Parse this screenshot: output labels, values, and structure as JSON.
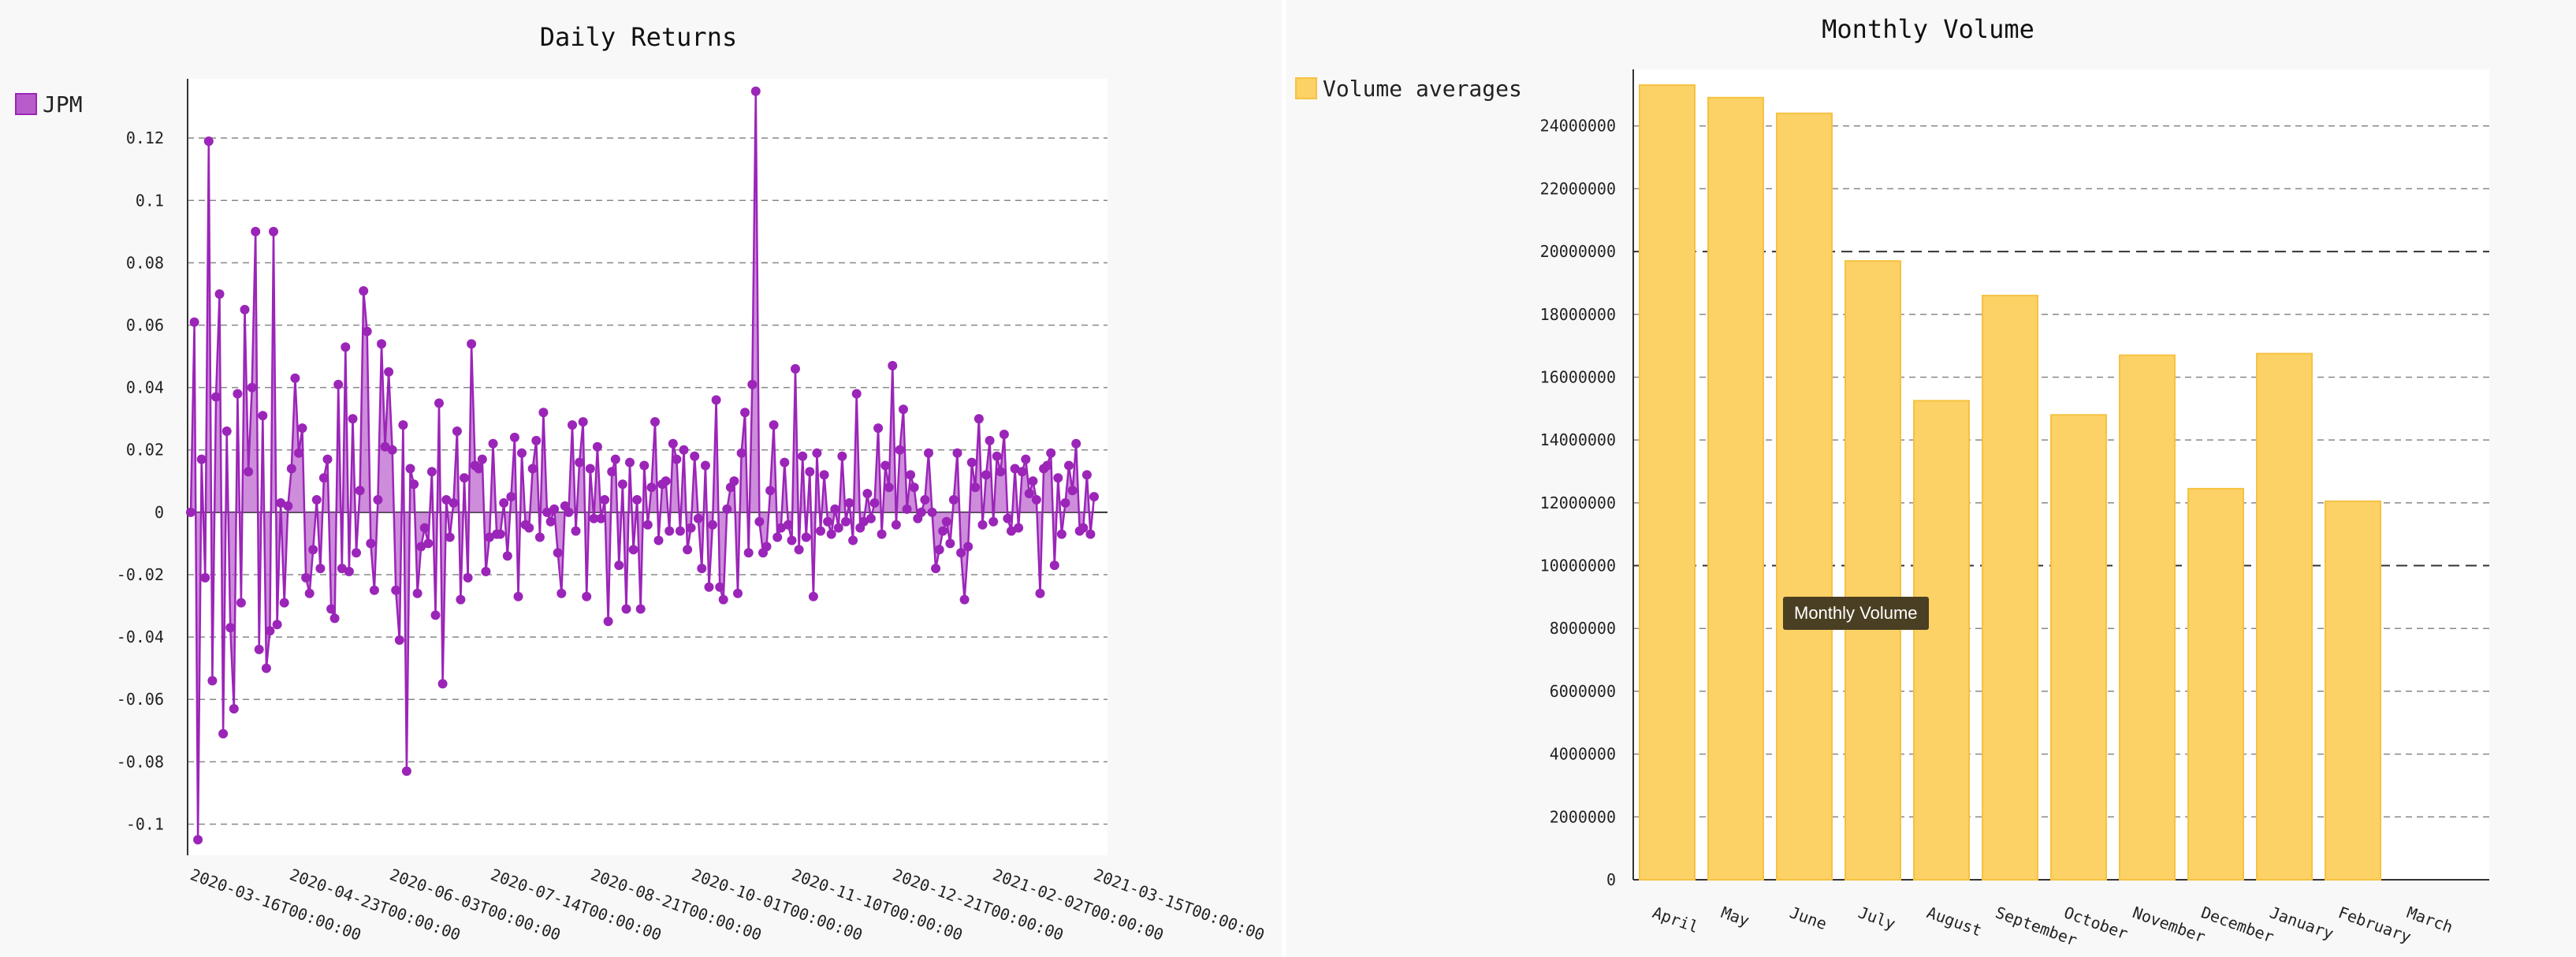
{
  "colors": {
    "line": "#9b25b8",
    "line_fill": "#b85ccc",
    "bar": "#fcd166",
    "bar_stroke": "#f5c242",
    "grid": "#888888"
  },
  "chart_data": [
    {
      "type": "line",
      "title": "Daily Returns",
      "series": [
        {
          "name": "JPM",
          "values": [
            0.0,
            0.061,
            -0.105,
            0.017,
            -0.021,
            0.119,
            -0.054,
            0.037,
            0.07,
            -0.071,
            0.026,
            -0.037,
            -0.063,
            0.038,
            -0.029,
            0.065,
            0.013,
            0.04,
            0.09,
            -0.044,
            0.031,
            -0.05,
            -0.038,
            0.09,
            -0.036,
            0.003,
            -0.029,
            0.002,
            0.014,
            0.043,
            0.019,
            0.027,
            -0.021,
            -0.026,
            -0.012,
            0.004,
            -0.018,
            0.011,
            0.017,
            -0.031,
            -0.034,
            0.041,
            -0.018,
            0.053,
            -0.019,
            0.03,
            -0.013,
            0.007,
            0.071,
            0.058,
            -0.01,
            -0.025,
            0.004,
            0.054,
            0.021,
            0.045,
            0.02,
            -0.025,
            -0.041,
            0.028,
            -0.083,
            0.014,
            0.009,
            -0.026,
            -0.011,
            -0.005,
            -0.01,
            0.013,
            -0.033,
            0.035,
            -0.055,
            0.004,
            -0.008,
            0.003,
            0.026,
            -0.028,
            0.011,
            -0.021,
            0.054,
            0.015,
            0.014,
            0.017,
            -0.019,
            -0.008,
            0.022,
            -0.007,
            -0.007,
            0.003,
            -0.014,
            0.005,
            0.024,
            -0.027,
            0.019,
            -0.004,
            -0.005,
            0.014,
            0.023,
            -0.008,
            0.032,
            0.0,
            -0.003,
            0.001,
            -0.013,
            -0.026,
            0.002,
            0.0,
            0.028,
            -0.006,
            0.016,
            0.029,
            -0.027,
            0.014,
            -0.002,
            0.021,
            -0.002,
            0.004,
            -0.035,
            0.013,
            0.017,
            -0.017,
            0.009,
            -0.031,
            0.016,
            -0.012,
            0.004,
            -0.031,
            0.015,
            -0.004,
            0.008,
            0.029,
            -0.009,
            0.009,
            0.01,
            -0.006,
            0.022,
            0.017,
            -0.006,
            0.02,
            -0.012,
            -0.005,
            0.018,
            -0.002,
            -0.018,
            0.015,
            -0.024,
            -0.004,
            0.036,
            -0.024,
            -0.028,
            0.001,
            0.008,
            0.01,
            -0.026,
            0.019,
            0.032,
            -0.013,
            0.041,
            0.135,
            -0.003,
            -0.013,
            -0.011,
            0.007,
            0.028,
            -0.008,
            -0.005,
            0.016,
            -0.004,
            -0.009,
            0.046,
            -0.012,
            0.018,
            -0.008,
            0.013,
            -0.027,
            0.019,
            -0.006,
            0.012,
            -0.003,
            -0.007,
            0.001,
            -0.005,
            0.018,
            -0.003,
            0.003,
            -0.009,
            0.038,
            -0.005,
            -0.003,
            0.006,
            -0.002,
            0.003,
            0.027,
            -0.007,
            0.015,
            0.008,
            0.047,
            -0.004,
            0.02,
            0.033,
            0.001,
            0.012,
            0.008,
            -0.002,
            0.0,
            0.004,
            0.019,
            0.0,
            -0.018,
            -0.012,
            -0.006,
            -0.003,
            -0.01,
            0.004,
            0.019,
            -0.013,
            -0.028,
            -0.011,
            0.016,
            0.008,
            0.03,
            -0.004,
            0.012,
            0.023,
            -0.003,
            0.018,
            0.013,
            0.025,
            -0.002,
            -0.006,
            0.014,
            -0.005,
            0.013,
            0.017,
            0.006,
            0.01,
            0.004,
            -0.026,
            0.014,
            0.015,
            0.019,
            -0.017,
            0.011,
            -0.007,
            0.003,
            0.015,
            0.007,
            0.022,
            -0.006,
            -0.005,
            0.012,
            -0.007,
            0.005
          ]
        }
      ],
      "x_ticks": [
        "2020-03-16T00:00:00",
        "2020-04-23T00:00:00",
        "2020-06-03T00:00:00",
        "2020-07-14T00:00:00",
        "2020-08-21T00:00:00",
        "2020-10-01T00:00:00",
        "2020-11-10T00:00:00",
        "2020-12-21T00:00:00",
        "2021-02-02T00:00:00",
        "2021-03-15T00:00:00"
      ],
      "y_ticks": [
        "0.12",
        "0.1",
        "0.08",
        "0.06",
        "0.04",
        "0.02",
        "0",
        "-0.02",
        "-0.04",
        "-0.06",
        "-0.08",
        "-0.1"
      ],
      "y_tick_values": [
        0.12,
        0.1,
        0.08,
        0.06,
        0.04,
        0.02,
        0,
        -0.02,
        -0.04,
        -0.06,
        -0.08,
        -0.1
      ],
      "ylim": [
        -0.11,
        0.139
      ],
      "grid": true,
      "legend": "left"
    },
    {
      "type": "bar",
      "title": "Monthly Volume",
      "categories": [
        "April",
        "May",
        "June",
        "July",
        "August",
        "September",
        "October",
        "November",
        "December",
        "January",
        "February",
        "March"
      ],
      "series": [
        {
          "name": "Volume averages",
          "values": [
            25300000,
            24900000,
            24400000,
            19700000,
            15250000,
            18600000,
            14800000,
            16700000,
            12450000,
            16750000,
            12050000,
            null
          ]
        }
      ],
      "y_ticks": [
        "24000000",
        "22000000",
        "20000000",
        "18000000",
        "16000000",
        "14000000",
        "12000000",
        "10000000",
        "8000000",
        "6000000",
        "4000000",
        "2000000",
        "0"
      ],
      "y_tick_values": [
        24000000,
        22000000,
        20000000,
        18000000,
        16000000,
        14000000,
        12000000,
        10000000,
        8000000,
        6000000,
        4000000,
        2000000,
        0
      ],
      "ylim": [
        0,
        25800000
      ],
      "grid": true,
      "legend": "top-left",
      "tooltip": "Monthly Volume"
    }
  ]
}
